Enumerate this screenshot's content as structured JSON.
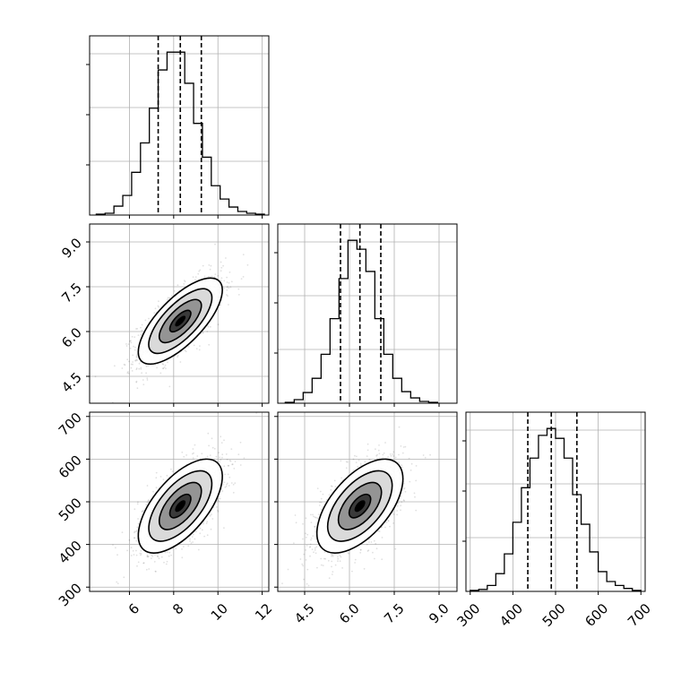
{
  "chart_data": {
    "type": "corner",
    "title": "",
    "variables": [
      {
        "range": [
          4.2,
          12.3
        ],
        "ticks": [
          6,
          8,
          10,
          12
        ],
        "tick_labels": [
          "6",
          "8",
          "10",
          "12"
        ],
        "quantiles": [
          7.3,
          8.3,
          9.25
        ],
        "hist_bins": [
          4.5,
          4.9,
          5.3,
          5.7,
          6.1,
          6.5,
          6.9,
          7.3,
          7.7,
          8.1,
          8.5,
          8.9,
          9.3,
          9.7,
          10.1,
          10.5,
          10.9,
          11.3,
          11.7,
          12.1
        ],
        "hist_counts": [
          1,
          2,
          10,
          22,
          48,
          81,
          120,
          163,
          183,
          183,
          148,
          103,
          65,
          33,
          18,
          9,
          4,
          2,
          1
        ]
      },
      {
        "range": [
          3.6,
          9.6
        ],
        "ticks": [
          4.5,
          6.0,
          7.5,
          9.0
        ],
        "tick_labels": [
          "4.5",
          "6.0",
          "7.5",
          "9.0"
        ],
        "quantiles": [
          5.7,
          6.35,
          7.05
        ],
        "hist_bins": [
          3.85,
          4.15,
          4.45,
          4.75,
          5.05,
          5.35,
          5.65,
          5.95,
          6.25,
          6.55,
          6.85,
          7.15,
          7.45,
          7.75,
          8.05,
          8.35,
          8.65,
          8.95
        ],
        "hist_counts": [
          1,
          4,
          12,
          28,
          55,
          95,
          140,
          183,
          173,
          148,
          95,
          55,
          28,
          13,
          6,
          2,
          1
        ]
      },
      {
        "range": [
          290,
          710
        ],
        "ticks": [
          300,
          400,
          500,
          600,
          700
        ],
        "tick_labels": [
          "300",
          "400",
          "500",
          "600",
          "700"
        ],
        "quantiles": [
          435,
          490,
          550
        ],
        "hist_bins": [
          300,
          320,
          340,
          360,
          380,
          400,
          420,
          440,
          460,
          480,
          500,
          520,
          540,
          560,
          580,
          600,
          620,
          640,
          660,
          680,
          700
        ],
        "hist_counts": [
          1,
          2,
          6,
          18,
          38,
          70,
          105,
          135,
          158,
          165,
          155,
          135,
          98,
          68,
          40,
          20,
          10,
          6,
          3,
          1
        ]
      }
    ],
    "correlations": [
      [
        1,
        0.72,
        0.63
      ],
      [
        0.72,
        1,
        0.58
      ],
      [
        0.63,
        0.58,
        1
      ]
    ],
    "means": [
      8.3,
      6.35,
      490
    ],
    "sds": [
      0.95,
      0.72,
      55
    ],
    "contour_levels_sigma": [
      0.5,
      1.0,
      1.5,
      2.0
    ],
    "grid": true,
    "colors": {
      "line": "#000000",
      "grid": "#b0b0b0",
      "points": "#000000"
    }
  }
}
